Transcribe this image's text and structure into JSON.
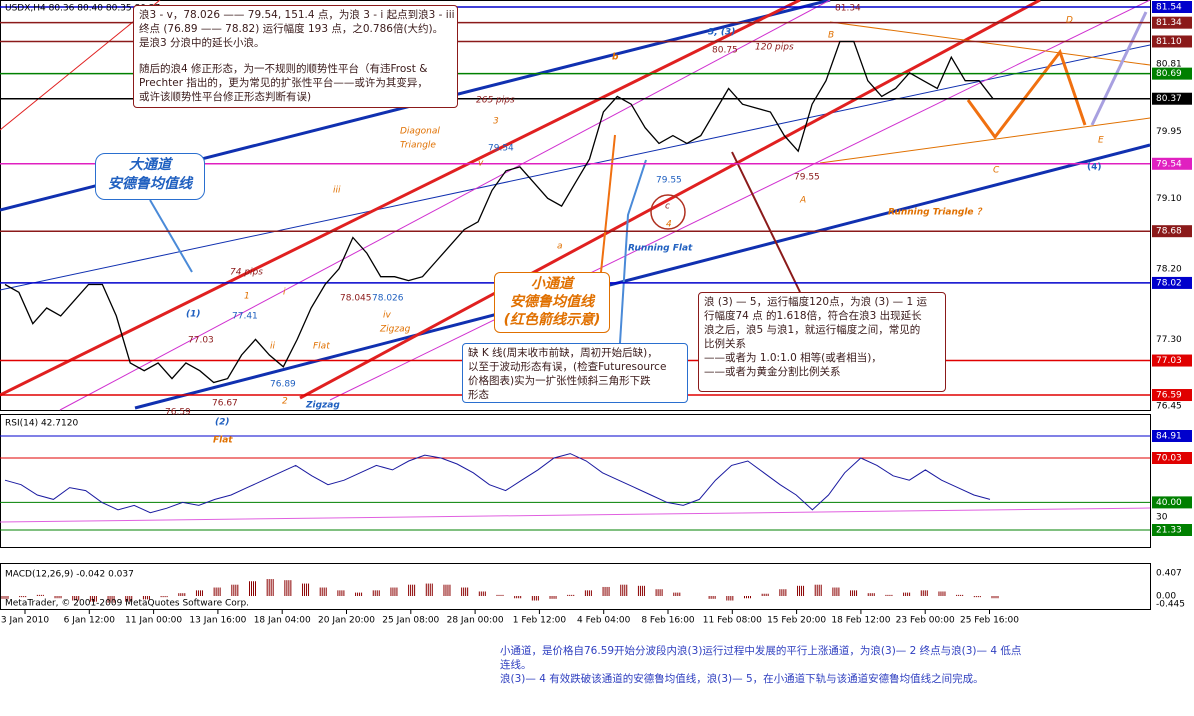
{
  "header": {
    "symbol": "USDX,H4 80.36 80.40 80.35 80.37",
    "copyright": "MetaTrader, © 2001-2009 MetaQuotes Software Corp."
  },
  "price_axis": {
    "ticks": [
      {
        "label": "81.54",
        "color": "#0000cc"
      },
      {
        "label": "81.34",
        "color": "#8b1a1a"
      },
      {
        "label": "81.10",
        "color": "#8b1a1a"
      },
      {
        "label": "80.81"
      },
      {
        "label": "80.69",
        "color": "#008000"
      },
      {
        "label": "80.37",
        "color": "#000000"
      },
      {
        "label": "79.95"
      },
      {
        "label": "79.54",
        "color": "#e020c0"
      },
      {
        "label": "79.10"
      },
      {
        "label": "78.68",
        "color": "#8b1a1a"
      },
      {
        "label": "78.20"
      },
      {
        "label": "78.02",
        "color": "#0000cc"
      },
      {
        "label": "77.30"
      },
      {
        "label": "77.03",
        "color": "#e00000"
      },
      {
        "label": "76.59",
        "color": "#e00000"
      },
      {
        "label": "76.45"
      }
    ]
  },
  "price": {
    "closes": [
      78.0,
      77.9,
      77.5,
      77.7,
      77.6,
      77.8,
      78.0,
      78.0,
      77.6,
      77.0,
      76.9,
      77.0,
      76.8,
      77.0,
      76.9,
      76.75,
      76.8,
      77.1,
      77.3,
      77.1,
      76.95,
      77.3,
      77.7,
      78.0,
      78.2,
      78.6,
      78.4,
      78.1,
      78.1,
      78.05,
      78.1,
      78.3,
      78.5,
      78.7,
      78.8,
      79.2,
      79.45,
      79.5,
      79.3,
      79.1,
      79.0,
      79.3,
      79.6,
      80.2,
      80.4,
      80.3,
      80.0,
      79.8,
      79.9,
      79.8,
      79.9,
      80.2,
      80.5,
      80.3,
      80.25,
      80.2,
      79.9,
      79.7,
      80.3,
      80.6,
      81.1,
      81.1,
      80.6,
      80.4,
      80.5,
      80.7,
      80.6,
      80.5,
      80.9,
      80.6,
      80.6,
      80.37
    ]
  },
  "rsi": {
    "title": "RSI(14) 42.7120",
    "ticks": [
      {
        "label": "84.91",
        "color": "#0000cc"
      },
      {
        "label": "70.03",
        "color": "#e00000"
      },
      {
        "label": "40.00",
        "color": "#008000"
      },
      {
        "label": "30"
      },
      {
        "label": "21.33",
        "color": "#008000"
      }
    ],
    "values": [
      55,
      52,
      45,
      42,
      50,
      48,
      40,
      35,
      38,
      33,
      36,
      40,
      38,
      42,
      45,
      50,
      55,
      60,
      65,
      58,
      52,
      55,
      60,
      65,
      62,
      68,
      72,
      70,
      66,
      60,
      52,
      48,
      55,
      62,
      70,
      73,
      68,
      60,
      55,
      50,
      45,
      40,
      38,
      42,
      55,
      65,
      68,
      60,
      52,
      45,
      35,
      45,
      60,
      70,
      65,
      58,
      55,
      62,
      55,
      50,
      45,
      42
    ]
  },
  "macd": {
    "title": "MACD(12,26,9) -0.042 0.037",
    "ticks": [
      {
        "label": "0.407"
      },
      {
        "label": "0.00"
      },
      {
        "label": "-0.445"
      }
    ],
    "values": [
      -0.05,
      -0.02,
      0.02,
      -0.04,
      -0.08,
      -0.1,
      -0.12,
      -0.1,
      -0.06,
      -0.02,
      0.05,
      0.1,
      0.15,
      0.2,
      0.26,
      0.3,
      0.28,
      0.22,
      0.15,
      0.1,
      0.06,
      0.1,
      0.15,
      0.2,
      0.22,
      0.2,
      0.15,
      0.08,
      0.02,
      -0.04,
      -0.08,
      -0.05,
      0.02,
      0.1,
      0.16,
      0.2,
      0.18,
      0.12,
      0.06,
      0.0,
      -0.05,
      -0.08,
      -0.04,
      0.04,
      0.12,
      0.18,
      0.2,
      0.15,
      0.1,
      0.05,
      0.02,
      0.06,
      0.1,
      0.08,
      0.02,
      -0.02,
      -0.04
    ]
  },
  "time_axis": [
    "3 Jan 2010",
    "6 Jan 12:00",
    "11 Jan 00:00",
    "13 Jan 16:00",
    "18 Jan 04:00",
    "20 Jan 20:00",
    "25 Jan 08:00",
    "28 Jan 00:00",
    "1 Feb 12:00",
    "4 Feb 04:00",
    "8 Feb 16:00",
    "11 Feb 08:00",
    "15 Feb 20:00",
    "18 Feb 12:00",
    "23 Feb 00:00",
    "25 Feb 16:00"
  ],
  "labels": [
    "81.34",
    "5, (3)",
    "80.75",
    "120 pips",
    "B",
    "D",
    "b",
    "265 pips",
    "3",
    "Diagonal",
    "Triangle",
    "v",
    "79.54",
    "79.55",
    "c",
    "4",
    "79.55",
    "A",
    "C",
    "E",
    "(4)",
    "Running Triangle ？",
    "iii",
    "Running Flat",
    "a",
    "74 pips",
    "1",
    "i",
    "(1)",
    "77.41",
    "77.03",
    "78.045",
    "78.026",
    "iv",
    "Zigzag",
    "ii",
    "Flat",
    "76.89",
    "76.67",
    "2",
    "Zigzag",
    "76.59",
    "(2)",
    "Flat"
  ],
  "notes": [
    {
      "lines": [
        "浪3 - v，78.026 —— 79.54, 151.4 点，为浪 3 - i 起点到浪3 - iii",
        "终点 (76.89 —— 78.82) 运行幅度 193 点，之0.786倍(大约)。",
        "是浪3 分浪中的延长小浪。",
        "随后的浪4 修正形态，为一不规则的顺势性平台（有违Frost &",
        "Prechter 指出的，更为常见的扩张性平台——或许为其变异，",
        "或许该顺势性平台修正形态判断有误)"
      ]
    },
    {
      "lines": [
        "浪 (3) — 5，运行幅度120点，为浪 (3) — 1 运",
        "行幅度74 点 的1.618倍，符合在浪3 出现延长",
        "浪之后，浪5 与浪1，就运行幅度之间，常见的",
        "比例关系",
        "——或者为 1.0:1.0 相等(或者相当)，",
        "——或者为黄金分割比例关系"
      ]
    },
    {
      "lines": [
        "缺 K 线(周末收市前缺，周初开始后缺)，",
        "以至于波动形态有误，(检查Futuresource",
        "价格图表)实为一扩张性倾斜三角形下跌",
        "形态"
      ]
    },
    {
      "lines": [
        "小通道",
        "安德鲁均值线",
        "(红色箭线示意)"
      ]
    },
    {
      "lines": [
        "大通道",
        "安德鲁均值线"
      ]
    },
    {
      "lines": [
        "小通道，是价格自76.59开始分波段内浪(3)运行过程中发展的平行上涨通道，为浪(3)— 2 终点与浪(3)— 4 低点",
        "连线。",
        "浪(3)— 4 有效跌破该通道的安德鲁均值线，浪(3)— 5，在小通道下轨与该通道安德鲁均值线之间完成。"
      ]
    }
  ]
}
